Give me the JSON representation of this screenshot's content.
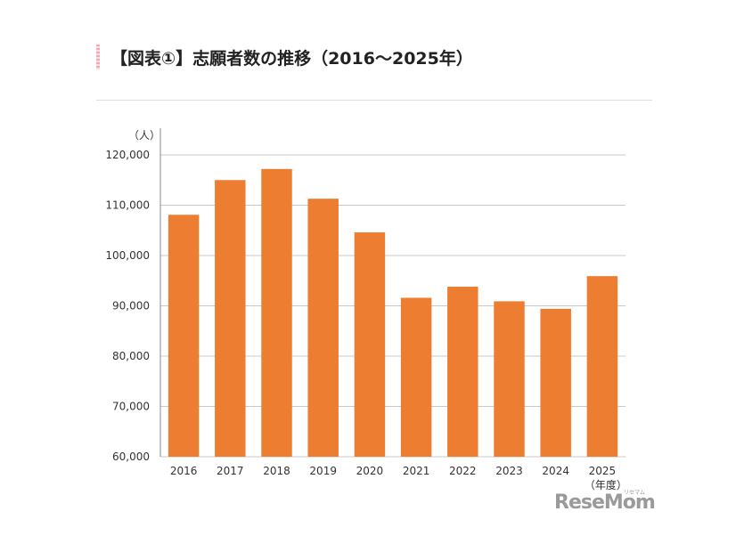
{
  "heading": {
    "title": "【図表①】志願者数の推移（2016〜2025年）"
  },
  "chart_data": {
    "type": "bar",
    "categories": [
      "2016",
      "2017",
      "2018",
      "2019",
      "2020",
      "2021",
      "2022",
      "2023",
      "2024",
      "2025"
    ],
    "values": [
      108100,
      115000,
      117200,
      111300,
      104600,
      91600,
      93800,
      90900,
      89400,
      95900
    ],
    "ylabel": "（人）",
    "xlabel": "（年度）",
    "ylim": [
      60000,
      120000
    ],
    "yticks": [
      60000,
      70000,
      80000,
      90000,
      100000,
      110000,
      120000
    ],
    "ytick_labels": [
      "60,000",
      "70,000",
      "80,000",
      "90,000",
      "100,000",
      "110,000",
      "120,000"
    ],
    "grid": true,
    "bar_color": "#ed7d31"
  },
  "watermark": {
    "text": "ReseMom",
    "small": "リセマム"
  }
}
